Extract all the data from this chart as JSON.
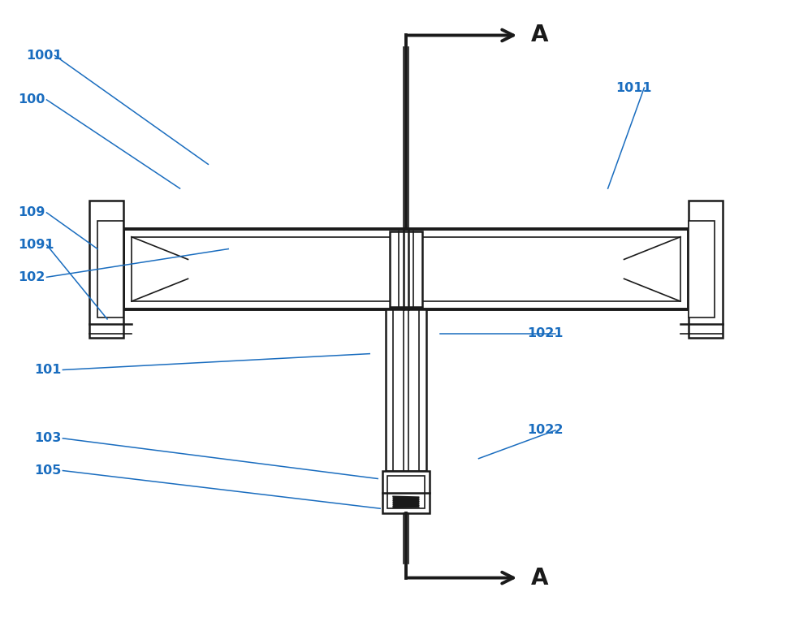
{
  "background_color": "#ffffff",
  "line_color": "#1a1a1a",
  "label_color": "#1a6dbf",
  "fig_width": 10.0,
  "fig_height": 7.66,
  "dpi": 100,
  "xlim": [
    0,
    10
  ],
  "ylim": [
    0,
    7.66
  ]
}
